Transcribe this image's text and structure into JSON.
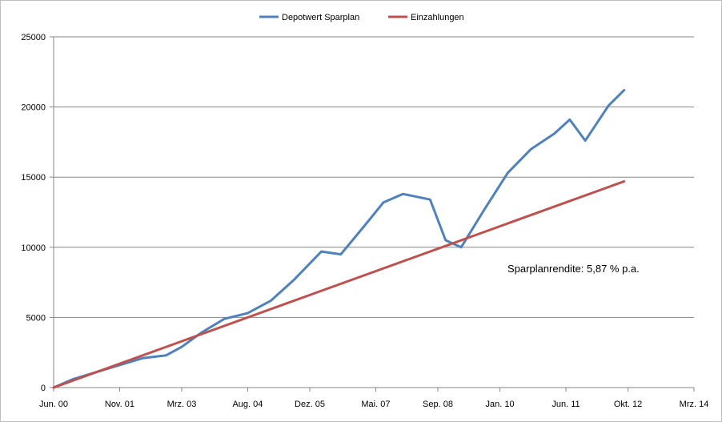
{
  "chart_data": {
    "type": "line",
    "title": "",
    "xlabel": "",
    "ylabel": "",
    "ylim": [
      0,
      25000
    ],
    "y_ticks": [
      0,
      5000,
      10000,
      15000,
      20000,
      25000
    ],
    "x_ticks": [
      "Jun. 00",
      "Nov. 01",
      "Mrz. 03",
      "Aug. 04",
      "Dez. 05",
      "Mai. 07",
      "Sep. 08",
      "Jan. 10",
      "Jun. 11",
      "Okt. 12",
      "Mrz. 14"
    ],
    "grid": "horizontal",
    "legend_position": "top",
    "annotation": "Sparplanrendite: 5,87 % p.a.",
    "colors": {
      "series_1": "#4f81bd",
      "series_2": "#c0504d",
      "gridline": "#868686"
    },
    "series": [
      {
        "name": "Depotwert Sparplan",
        "x": [
          "Jun. 00",
          "Nov. 00",
          "Mai. 01",
          "Nov. 01",
          "Mai. 02",
          "Nov. 02",
          "Mrz. 03",
          "Aug. 03",
          "Feb. 04",
          "Aug. 04",
          "Feb. 05",
          "Aug. 05",
          "Mrz. 06",
          "Aug. 06",
          "Feb. 07",
          "Jul. 07",
          "Dez. 07",
          "Jul. 08",
          "Nov. 08",
          "Mrz. 09",
          "Sep. 09",
          "Mrz. 10",
          "Sep. 10",
          "Mrz. 11",
          "Jul. 11",
          "Nov. 11",
          "Mai. 12",
          "Sep. 12"
        ],
        "values": [
          0,
          600,
          1100,
          1600,
          2100,
          2300,
          2900,
          3900,
          4900,
          5300,
          6200,
          7700,
          9700,
          9500,
          11500,
          13200,
          13800,
          13400,
          10500,
          10000,
          12700,
          15300,
          17000,
          18100,
          19100,
          17600,
          20100,
          21200
        ]
      },
      {
        "name": "Einzahlungen",
        "x": [
          "Jun. 00",
          "Sep. 12"
        ],
        "values": [
          0,
          14700
        ]
      }
    ]
  }
}
